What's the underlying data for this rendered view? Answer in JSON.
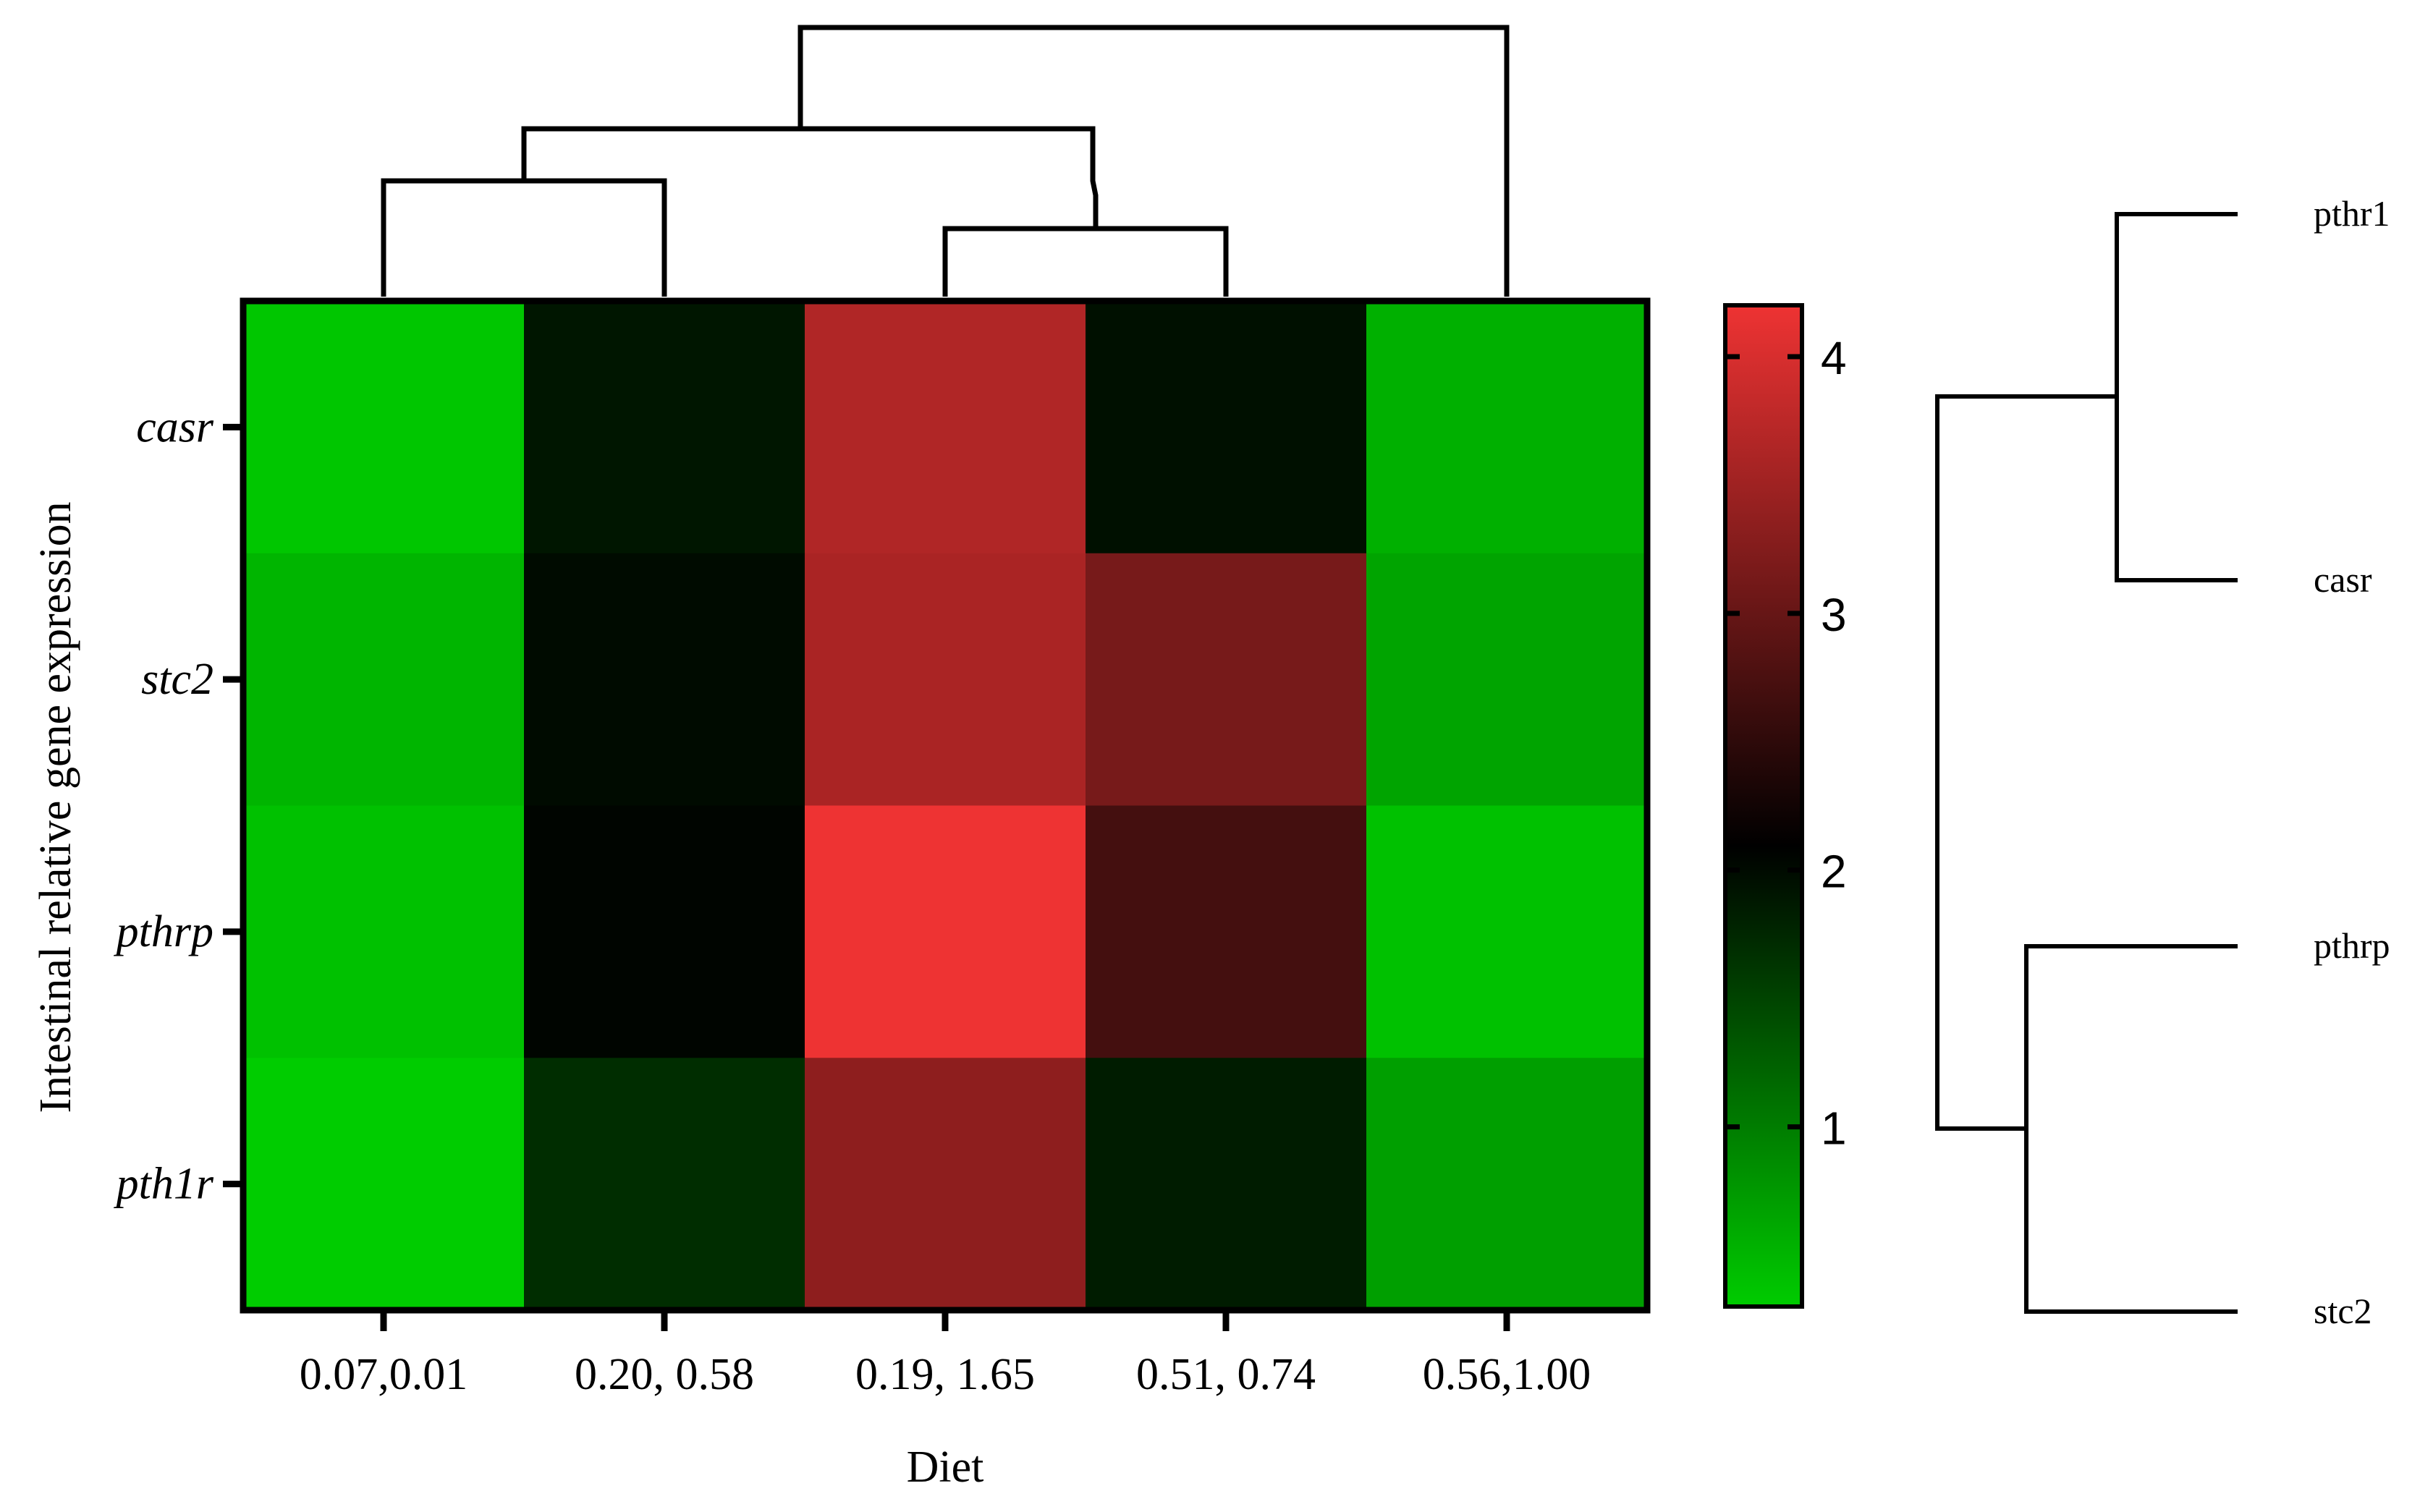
{
  "chart_data": {
    "type": "heatmap",
    "xlabel": "Diet",
    "ylabel": "Intestinal relative gene expression",
    "columns": [
      "0.07,0.01",
      "0.20, 0.58",
      "0.19, 1.65",
      "0.51, 0.74",
      "0.56,1.00"
    ],
    "rows": [
      "casr",
      "stc2",
      "pthrp",
      "pth1r"
    ],
    "values": [
      [
        0.35,
        1.9,
        3.65,
        1.95,
        0.55
      ],
      [
        0.5,
        2.0,
        3.6,
        3.15,
        0.65
      ],
      [
        0.4,
        2.05,
        4.2,
        2.7,
        0.4
      ],
      [
        0.3,
        1.7,
        3.35,
        1.85,
        0.7
      ]
    ],
    "colorbar": {
      "min": 0.3,
      "max": 4.2,
      "ticks": [
        "1",
        "2",
        "3",
        "4"
      ],
      "tick_values": [
        1,
        2,
        3,
        4
      ],
      "colors": {
        "low": "#00cc00",
        "mid": "#000000",
        "high": "#ee3333"
      }
    },
    "row_dendrogram_labels": [
      "pthr1",
      "casr",
      "pthrp",
      "stc2"
    ],
    "legend": "right"
  }
}
